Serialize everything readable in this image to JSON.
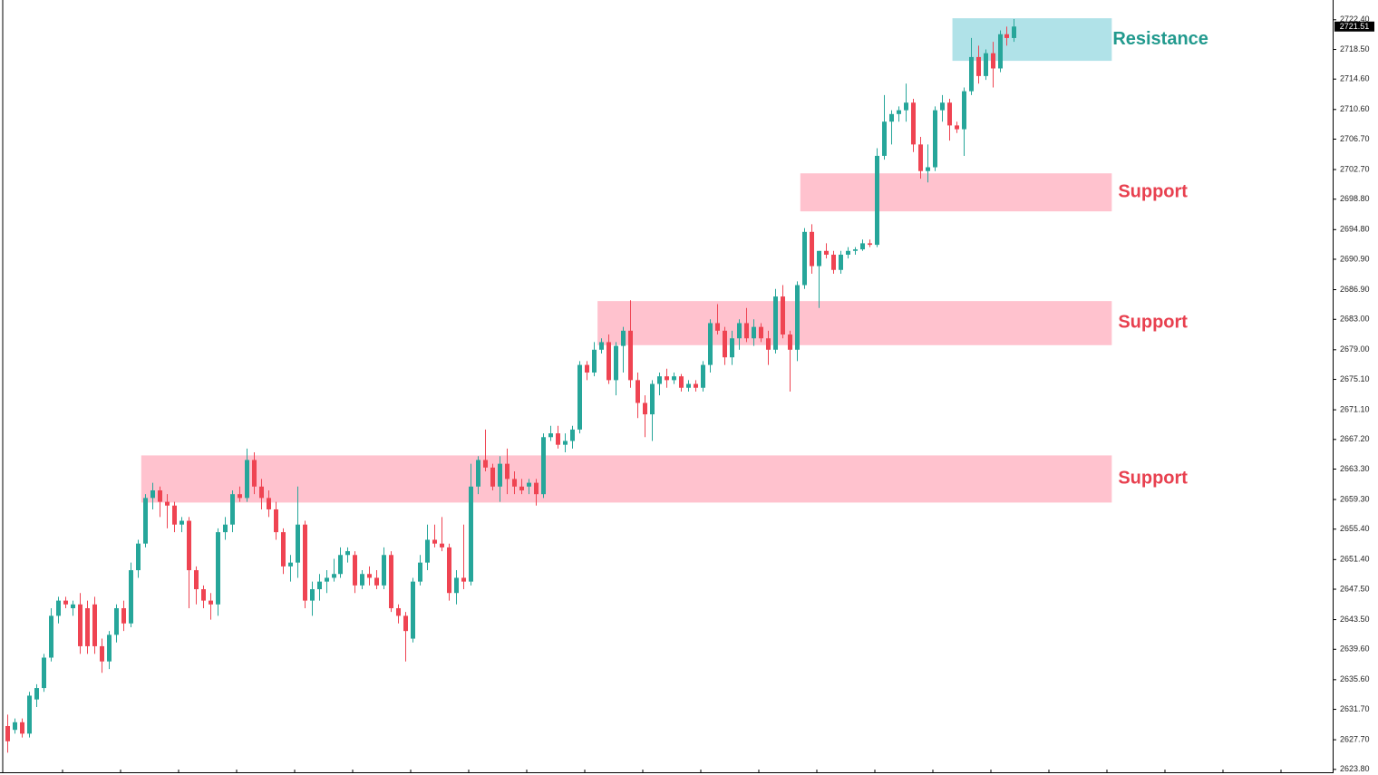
{
  "chart_data": {
    "type": "candlestick",
    "open": [
      2629.5,
      2629,
      2630,
      2628.5,
      2633,
      2634.5,
      2638.5,
      2644,
      2646,
      2645,
      2645.5,
      2645,
      2645.5,
      2640,
      2638,
      2641.5,
      2645,
      2643,
      2650,
      2653.5,
      2659.5,
      2660.5,
      2659,
      2658.5,
      2656,
      2656.5,
      2650,
      2647.5,
      2646,
      2645.5,
      2655,
      2656,
      2660,
      2659.5,
      2664.5,
      2661,
      2659.5,
      2658,
      2655,
      2650.5,
      2651,
      2656,
      2646,
      2647.5,
      2648.5,
      2649,
      2649.5,
      2652,
      2652,
      2648,
      2649.5,
      2649,
      2648,
      2652,
      2645,
      2644,
      2641,
      2648.5,
      2651,
      2654,
      2653.5,
      2653,
      2647,
      2649,
      2648.5,
      2661,
      2664.5,
      2663.5,
      2661,
      2664,
      2662,
      2661,
      2661,
      2661.5,
      2660,
      2667.5,
      2668,
      2666.5,
      2667,
      2668.5,
      2677,
      2676,
      2679,
      2680,
      2675,
      2679.5,
      2681.5,
      2675,
      2672,
      2670.5,
      2674.5,
      2675.5,
      2675,
      2675.5,
      2674,
      2674.5,
      2674,
      2677,
      2682.5,
      2681.5,
      2678,
      2680.5,
      2682.5,
      2680.5,
      2682,
      2680.5,
      2679,
      2686,
      2681,
      2679,
      2687.5,
      2694.5,
      2690,
      2692,
      2691.5,
      2689.5,
      2691.5,
      2692,
      2692.2,
      2693,
      2692.8,
      2704.5,
      2709,
      2710,
      2710.5,
      2711.5,
      2706,
      2702.5,
      2703,
      2710.5,
      2711.5,
      2708.5,
      2708,
      2713,
      2717.5,
      2715,
      2718,
      2716,
      2720.5,
      2720
    ],
    "high": [
      2631,
      2630.5,
      2630.5,
      2634,
      2635,
      2639,
      2645,
      2646.5,
      2646.5,
      2646,
      2647,
      2646,
      2646.5,
      2641,
      2642,
      2645.5,
      2646,
      2651,
      2654,
      2660,
      2661.5,
      2661,
      2660,
      2659,
      2657,
      2657,
      2650.5,
      2648,
      2647,
      2655.5,
      2657,
      2660.5,
      2661,
      2666,
      2665.5,
      2662,
      2660.5,
      2659,
      2655.5,
      2652,
      2661,
      2656.5,
      2648.5,
      2649.5,
      2650,
      2651.5,
      2653,
      2653,
      2652.5,
      2650,
      2650.5,
      2650,
      2653,
      2652.5,
      2645.5,
      2644.5,
      2649,
      2652,
      2656,
      2656,
      2657,
      2653.5,
      2650,
      2656,
      2664,
      2665,
      2668.5,
      2664,
      2665,
      2666,
      2663,
      2662,
      2662,
      2662,
      2668,
      2669,
      2669,
      2668,
      2669,
      2677.5,
      2677.5,
      2680,
      2680.5,
      2681,
      2680,
      2682,
      2685.5,
      2676,
      2673,
      2675,
      2676,
      2676.5,
      2676,
      2675.8,
      2675,
      2675,
      2677.5,
      2683,
      2685,
      2682,
      2681.5,
      2683,
      2684.5,
      2683,
      2682.5,
      2681.5,
      2687,
      2687.5,
      2681.5,
      2688,
      2695,
      2695.5,
      2692,
      2693,
      2692,
      2692,
      2692.5,
      2692.5,
      2693.5,
      2693.5,
      2705.5,
      2712.5,
      2710.5,
      2711,
      2714,
      2712,
      2707,
      2706,
      2711,
      2712.5,
      2712,
      2709,
      2713.5,
      2720,
      2719,
      2718.5,
      2719.5,
      2721,
      2721.5,
      2722.5
    ],
    "low": [
      2626,
      2628.5,
      2628,
      2628,
      2632,
      2634,
      2638,
      2643,
      2645,
      2644,
      2639,
      2639,
      2639,
      2636.5,
      2637,
      2640.5,
      2642,
      2642.5,
      2649,
      2653,
      2658,
      2657,
      2655.5,
      2655,
      2655,
      2645,
      2645.5,
      2645,
      2643.5,
      2644,
      2654,
      2655,
      2659,
      2659,
      2660,
      2658,
      2657,
      2654,
      2649.5,
      2648.5,
      2649,
      2645,
      2644,
      2646,
      2647,
      2648.5,
      2649,
      2651,
      2647,
      2647.5,
      2648,
      2647.5,
      2647.5,
      2644.5,
      2643,
      2638,
      2640.5,
      2648,
      2650,
      2653,
      2652.5,
      2646,
      2645.5,
      2647.5,
      2648,
      2660,
      2663,
      2660.5,
      2659,
      2660,
      2660,
      2660,
      2660,
      2658.5,
      2659.5,
      2667,
      2666,
      2665.5,
      2666,
      2668,
      2675,
      2675.5,
      2678.5,
      2674.5,
      2673,
      2676,
      2674,
      2670,
      2667.5,
      2667,
      2673,
      2674,
      2674.5,
      2673.5,
      2673.5,
      2673.5,
      2673.5,
      2676,
      2681,
      2677,
      2677,
      2679,
      2680,
      2679.5,
      2680,
      2677,
      2678.5,
      2680.5,
      2673.5,
      2677.5,
      2687,
      2689,
      2684.5,
      2691,
      2689,
      2689,
      2691,
      2691.5,
      2692,
      2692.5,
      2692.5,
      2704,
      2706,
      2709,
      2709,
      2705,
      2701.5,
      2701,
      2702.5,
      2709,
      2706.5,
      2707.5,
      2704.5,
      2712.5,
      2714,
      2714.5,
      2713.5,
      2715.5,
      2719,
      2719.5
    ],
    "close": [
      2627.5,
      2630,
      2628.5,
      2633.5,
      2634.5,
      2638.5,
      2644,
      2646,
      2645.5,
      2645.5,
      2640,
      2640,
      2640,
      2638,
      2641.5,
      2645,
      2643,
      2650,
      2653.5,
      2659.5,
      2660.5,
      2659,
      2658.5,
      2656,
      2656.5,
      2650,
      2647.5,
      2646,
      2645.5,
      2655,
      2656,
      2660,
      2659.5,
      2664.5,
      2661,
      2659.5,
      2658,
      2655,
      2650.5,
      2651,
      2656,
      2646,
      2647.5,
      2648.5,
      2649,
      2649.5,
      2652,
      2652.5,
      2648,
      2649.5,
      2649,
      2648,
      2652,
      2645,
      2644,
      2642,
      2648.5,
      2651,
      2654,
      2653.5,
      2653,
      2647,
      2649,
      2648.5,
      2661,
      2664.5,
      2663.5,
      2661,
      2664,
      2662,
      2661,
      2660.5,
      2661.5,
      2660,
      2667.5,
      2668,
      2666.5,
      2667,
      2668.5,
      2677,
      2676,
      2679,
      2680,
      2675,
      2679.5,
      2681.5,
      2675,
      2672,
      2670.5,
      2674.5,
      2675.5,
      2675,
      2675.5,
      2674,
      2674.5,
      2674,
      2677,
      2682.5,
      2681.5,
      2678,
      2680.5,
      2682.5,
      2680.5,
      2682,
      2680.5,
      2679,
      2686,
      2681,
      2679,
      2687.5,
      2694.5,
      2690,
      2692,
      2691.5,
      2689.5,
      2691.5,
      2692,
      2692.2,
      2693,
      2692.8,
      2704.5,
      2709,
      2710,
      2710.5,
      2711.5,
      2706,
      2702.5,
      2703,
      2710.5,
      2711.5,
      2708.5,
      2708,
      2713,
      2717.5,
      2715,
      2718,
      2716,
      2720.5,
      2720,
      2721.51
    ],
    "up_color": "#26a69a",
    "down_color": "#ef4452",
    "xlim": [
      -1,
      183
    ],
    "ylim": [
      2623.3,
      2725.0
    ],
    "yticks": [
      {
        "value": 2722.4,
        "label": "2722.40"
      },
      {
        "value": 2718.5,
        "label": "2718.50"
      },
      {
        "value": 2714.6,
        "label": "2714.60"
      },
      {
        "value": 2710.6,
        "label": "2710.60"
      },
      {
        "value": 2706.7,
        "label": "2706.70"
      },
      {
        "value": 2702.7,
        "label": "2702.70"
      },
      {
        "value": 2698.8,
        "label": "2698.80"
      },
      {
        "value": 2694.8,
        "label": "2694.80"
      },
      {
        "value": 2690.9,
        "label": "2690.90"
      },
      {
        "value": 2686.9,
        "label": "2686.90"
      },
      {
        "value": 2683.0,
        "label": "2683.00"
      },
      {
        "value": 2679.0,
        "label": "2679.00"
      },
      {
        "value": 2675.1,
        "label": "2675.10"
      },
      {
        "value": 2671.1,
        "label": "2671.10"
      },
      {
        "value": 2667.2,
        "label": "2667.20"
      },
      {
        "value": 2663.3,
        "label": "2663.30"
      },
      {
        "value": 2659.3,
        "label": "2659.30"
      },
      {
        "value": 2655.4,
        "label": "2655.40"
      },
      {
        "value": 2651.4,
        "label": "2651.40"
      },
      {
        "value": 2647.5,
        "label": "2647.50"
      },
      {
        "value": 2643.5,
        "label": "2643.50"
      },
      {
        "value": 2639.6,
        "label": "2639.60"
      },
      {
        "value": 2635.6,
        "label": "2635.60"
      },
      {
        "value": 2631.7,
        "label": "2631.70"
      },
      {
        "value": 2627.7,
        "label": "2627.70"
      },
      {
        "value": 2623.8,
        "label": "2623.80"
      }
    ],
    "last_price": 2721.51,
    "zones": [
      {
        "label": "Resistance",
        "low": 2717.0,
        "high": 2722.6,
        "start": 131,
        "end": 153,
        "color": "#b0e2e8",
        "text_color": "#229a8e"
      },
      {
        "label": "Support",
        "low": 2697.2,
        "high": 2702.2,
        "start": 110,
        "end": 153,
        "color": "#ffc2ce",
        "text_color": "#e8404f"
      },
      {
        "label": "Support",
        "low": 2679.6,
        "high": 2685.4,
        "start": 82,
        "end": 153,
        "color": "#ffc2ce",
        "text_color": "#e8404f"
      },
      {
        "label": "Support",
        "low": 2658.9,
        "high": 2665.1,
        "start": 19,
        "end": 153,
        "color": "#ffc2ce",
        "text_color": "#e8404f"
      }
    ]
  }
}
